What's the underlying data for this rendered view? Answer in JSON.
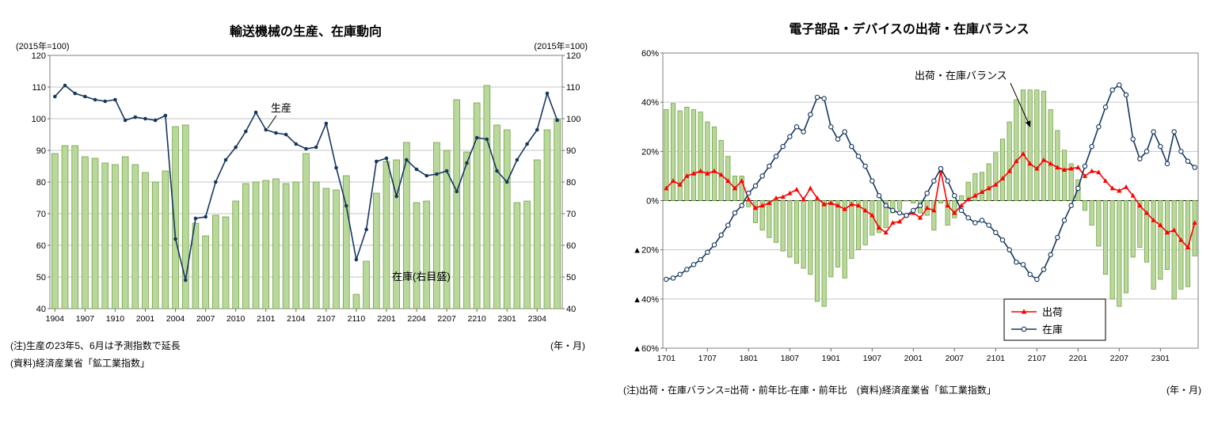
{
  "left_chart": {
    "title": "輸送機械の生産、在庫動向",
    "y_axis_caption_left": "(2015年=100)",
    "y_axis_caption_right": "(2015年=100)",
    "line_label": "生産",
    "bar_label": "在庫(右目盛)",
    "note_line1": "(注)生産の23年5、6月は予測指数で延長",
    "note_line2": "(資料)経済産業省「鉱工業指数」",
    "x_axis_unit": "(年・月)"
  },
  "right_chart": {
    "title": "電子部品・デバイスの出荷・在庫バランス",
    "bar_label": "出荷・在庫バランス",
    "legend": {
      "shipments": "出荷",
      "inventory": "在庫"
    },
    "note": "(注)出荷・在庫バランス=出荷・前年比-在庫・前年比　(資料)経済産業省「鉱工業指数」",
    "x_axis_unit": "(年・月)"
  },
  "colors": {
    "bar_fill": "#b9d89c",
    "bar_stroke": "#6e9e3e",
    "navy": "#17375e",
    "red": "#ff0000",
    "grid": "#c6c6c6",
    "border": "#7f7f7f"
  },
  "chart_data": [
    {
      "type": "bar+line",
      "title": "輸送機械の生産、在庫動向",
      "xlabel": "(年・月)",
      "ylabel": "(2015年=100)",
      "ylim": [
        40,
        120
      ],
      "y2lim": [
        40,
        120
      ],
      "grid": true,
      "right_axis_labels": true,
      "zero_line": false,
      "ytick_values": [
        120,
        110,
        100,
        90,
        80,
        70,
        60,
        50,
        40
      ],
      "ytick_labels": [
        "120",
        "110",
        "100",
        "90",
        "80",
        "70",
        "60",
        "50",
        "40"
      ],
      "x": [
        "1904",
        "1905",
        "1906",
        "1907",
        "1908",
        "1909",
        "1910",
        "1911",
        "1912",
        "2001",
        "2002",
        "2003",
        "2004",
        "2005",
        "2006",
        "2007",
        "2008",
        "2009",
        "2010",
        "2011",
        "2012",
        "2101",
        "2102",
        "2103",
        "2104",
        "2105",
        "2106",
        "2107",
        "2108",
        "2109",
        "2110",
        "2111",
        "2112",
        "2201",
        "2202",
        "2203",
        "2204",
        "2205",
        "2206",
        "2207",
        "2208",
        "2209",
        "2210",
        "2211",
        "2212",
        "2301",
        "2302",
        "2303",
        "2304",
        "2305",
        "2306"
      ],
      "x_ticks": [
        "1904",
        "1907",
        "1910",
        "2001",
        "2004",
        "2007",
        "2010",
        "2101",
        "2104",
        "2107",
        "2110",
        "2201",
        "2204",
        "2207",
        "2210",
        "2301",
        "2304"
      ],
      "series": [
        {
          "id": "inventory-bars",
          "name": "在庫(右目盛)",
          "type": "bar",
          "axis": "right",
          "color": "#b9d89c",
          "stroke": "#6e9e3e",
          "values": [
            89,
            91.5,
            91.5,
            88,
            87.5,
            86,
            85.5,
            88,
            85.5,
            83,
            80,
            83.5,
            97.5,
            98,
            67,
            63,
            69.5,
            69,
            74,
            79.5,
            80,
            80.5,
            81,
            79.5,
            80,
            89,
            80,
            78,
            77.5,
            82,
            44.5,
            55,
            76.5,
            86.5,
            87,
            92.5,
            73.5,
            74,
            92.5,
            90,
            106,
            89.5,
            105,
            110.5,
            98,
            96.5,
            73.5,
            74,
            87,
            96.5,
            100
          ]
        },
        {
          "id": "production-line",
          "name": "生産",
          "type": "line",
          "axis": "left",
          "marker": "circle",
          "color": "#17375e",
          "values": [
            107,
            110.5,
            108,
            107,
            106,
            105.5,
            106,
            99.5,
            100.5,
            100,
            99.5,
            101,
            62,
            49,
            68.5,
            69,
            80,
            87,
            91,
            96,
            102,
            96.5,
            95.5,
            95,
            92,
            90.5,
            91,
            98.5,
            84.5,
            72.5,
            55.5,
            65,
            86.5,
            87.5,
            75.5,
            87,
            84,
            82,
            82.5,
            83.5,
            77,
            86,
            94,
            93.5,
            83.5,
            80,
            87,
            92,
            96.5,
            108,
            99.5
          ]
        }
      ]
    },
    {
      "type": "bar+line",
      "title": "電子部品・デバイスの出荷・在庫バランス",
      "xlabel": "(年・月)",
      "ylabel": "%",
      "ylim": [
        -60,
        60
      ],
      "grid": true,
      "right_axis_labels": false,
      "zero_line": true,
      "legend_position": "lower-right-inside",
      "ytick_values": [
        60,
        40,
        20,
        0,
        -20,
        -40,
        -60
      ],
      "ytick_labels": [
        "60%",
        "40%",
        "20%",
        "0%",
        "▲20%",
        "▲40%",
        "▲60%"
      ],
      "x": [
        "1701",
        "1702",
        "1703",
        "1704",
        "1705",
        "1706",
        "1707",
        "1708",
        "1709",
        "1710",
        "1711",
        "1712",
        "1801",
        "1802",
        "1803",
        "1804",
        "1805",
        "1806",
        "1807",
        "1808",
        "1809",
        "1810",
        "1811",
        "1812",
        "1901",
        "1902",
        "1903",
        "1904",
        "1905",
        "1906",
        "1907",
        "1908",
        "1909",
        "1910",
        "1911",
        "1912",
        "2001",
        "2002",
        "2003",
        "2004",
        "2005",
        "2006",
        "2007",
        "2008",
        "2009",
        "2010",
        "2011",
        "2012",
        "2101",
        "2102",
        "2103",
        "2104",
        "2105",
        "2106",
        "2107",
        "2108",
        "2109",
        "2110",
        "2111",
        "2112",
        "2201",
        "2202",
        "2203",
        "2204",
        "2205",
        "2206",
        "2207",
        "2208",
        "2209",
        "2210",
        "2211",
        "2212",
        "2301",
        "2302",
        "2303",
        "2304",
        "2305",
        "2306"
      ],
      "x_ticks": [
        "1701",
        "1707",
        "1801",
        "1807",
        "1901",
        "1907",
        "2001",
        "2007",
        "2101",
        "2107",
        "2201",
        "2207",
        "2301"
      ],
      "series": [
        {
          "id": "balance-bars",
          "name": "出荷・在庫バランス",
          "type": "bar",
          "base": 0,
          "color": "#b9d89c",
          "stroke": "#6e9e3e",
          "values": [
            37,
            39.5,
            36.5,
            38,
            37,
            36,
            32,
            30,
            24.5,
            18,
            10,
            10,
            -2.5,
            -9,
            -12,
            -15,
            -17,
            -20.5,
            -23,
            -25.5,
            -27.5,
            -30,
            -41,
            -43,
            -31,
            -27,
            -31.5,
            -23.5,
            -20,
            -18,
            -14,
            -13,
            -11,
            -5,
            -3.5,
            0,
            -1,
            -5,
            -6,
            -12,
            -1,
            -10,
            -7,
            2,
            7.5,
            11,
            11.5,
            15,
            19.5,
            25,
            32,
            41,
            45,
            45,
            45,
            44.5,
            37,
            28.5,
            20.5,
            15,
            8.5,
            -4,
            -10,
            -18.5,
            -30,
            -40,
            -43,
            -37.5,
            -23,
            -19,
            -25,
            -36,
            -32,
            -28,
            -40,
            -36,
            -35,
            -22.5
          ]
        },
        {
          "id": "shipments-line",
          "name": "出荷",
          "type": "line",
          "marker": "triangle",
          "color": "#ff0000",
          "values": [
            5,
            8,
            6.5,
            10,
            11,
            12,
            11,
            12,
            10.5,
            8,
            5,
            8,
            0.5,
            -3,
            -2,
            -1,
            1,
            1.5,
            3,
            4.5,
            0.5,
            5,
            1,
            -1.5,
            -1,
            -2,
            -3.5,
            -1.5,
            -2,
            -4,
            -6,
            -11,
            -13,
            -9,
            -8.5,
            -6,
            -5,
            -7,
            -3,
            -4,
            12,
            -2,
            -5,
            -2,
            0.5,
            2,
            3.5,
            5,
            6.5,
            9,
            12,
            16,
            19,
            15,
            13,
            16.5,
            15,
            13.5,
            12.5,
            13,
            13.5,
            10,
            12,
            11.5,
            8,
            5,
            4,
            5.5,
            2,
            -2,
            -5,
            -8,
            -10,
            -13,
            -12,
            -16,
            -19,
            -9
          ]
        },
        {
          "id": "inventory-line",
          "name": "在庫",
          "type": "line",
          "marker": "circle-open",
          "color": "#17375e",
          "values": [
            -32,
            -31.5,
            -30,
            -28,
            -26,
            -24,
            -21,
            -18,
            -14,
            -10,
            -5,
            -2,
            3,
            6,
            10,
            14,
            18,
            22,
            26,
            30,
            28,
            35,
            42,
            41.5,
            30,
            25,
            28,
            22,
            18,
            14,
            8,
            2,
            -2,
            -4,
            -5,
            -6,
            -4,
            -2,
            3,
            8,
            13,
            8,
            2,
            -4,
            -7,
            -9,
            -8,
            -10,
            -13,
            -16,
            -20,
            -25,
            -26,
            -30,
            -32,
            -28,
            -22,
            -15,
            -8,
            -2,
            5,
            14,
            22,
            30,
            38,
            45,
            47,
            43,
            25,
            17,
            20,
            28,
            22,
            15,
            28,
            20,
            16,
            13.5
          ]
        }
      ]
    }
  ]
}
